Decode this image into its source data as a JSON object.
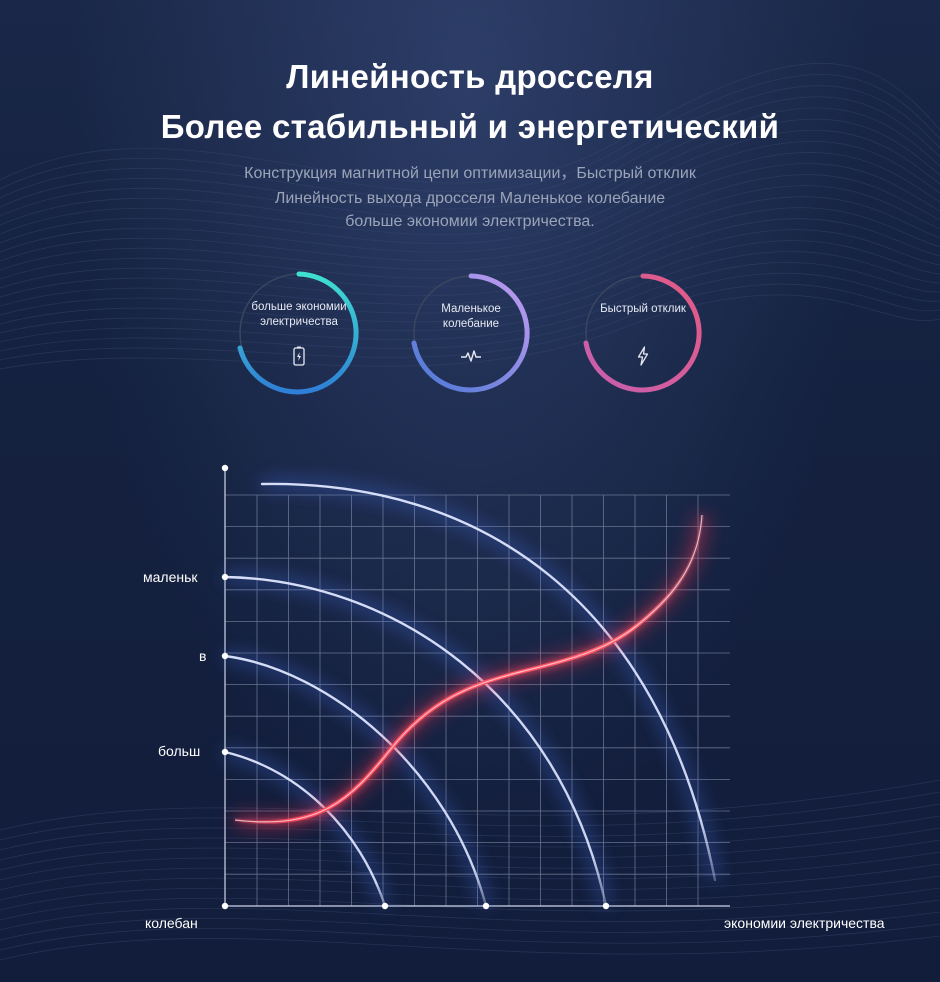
{
  "header": {
    "title_line1": "Линейность дросселя",
    "title_line2": "Более стабильный и энергетический",
    "subtitle_line1": "Конструкция магнитной цепи оптимизации，Быстрый отклик",
    "subtitle_line2": "Линейность выхода дросселя Маленькое колебание",
    "subtitle_line3": "больше экономии электричества."
  },
  "badges": [
    {
      "label": "больше экономии электричества",
      "icon": "battery-icon",
      "gradient_start": "#3fe0d0",
      "gradient_end": "#2f7fd6"
    },
    {
      "label": "Маленькое колебание",
      "icon": "pulse-icon",
      "gradient_start": "#c49cf0",
      "gradient_end": "#4a78d6"
    },
    {
      "label": "Быстрый отклик",
      "icon": "lightning-icon",
      "gradient_start": "#e35a84",
      "gradient_end": "#c75fb0"
    }
  ],
  "diagram": {
    "y_labels": [
      "маленьк",
      "в",
      "больш"
    ],
    "origin_label": "колебан",
    "x_label": "экономии электричества",
    "arc_color": "#dfe6ff",
    "curve_color": "#ff4a5e"
  }
}
